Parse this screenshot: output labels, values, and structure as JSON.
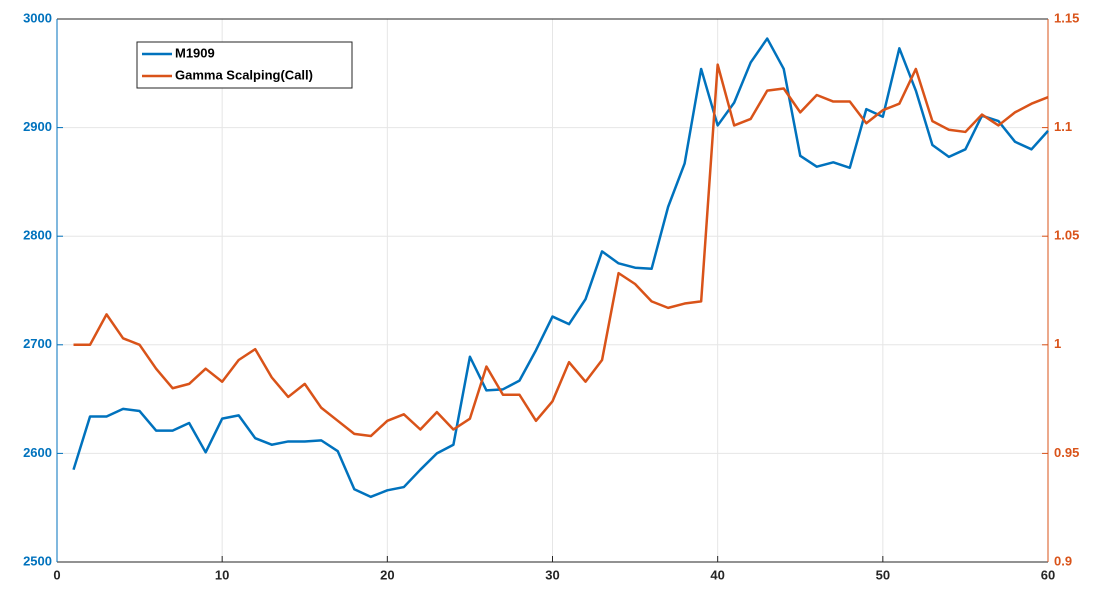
{
  "chart_data": {
    "type": "line",
    "x": [
      1,
      2,
      3,
      4,
      5,
      6,
      7,
      8,
      9,
      10,
      11,
      12,
      13,
      14,
      15,
      16,
      17,
      18,
      19,
      20,
      21,
      22,
      23,
      24,
      25,
      26,
      27,
      28,
      29,
      30,
      31,
      32,
      33,
      34,
      35,
      36,
      37,
      38,
      39,
      40,
      41,
      42,
      43,
      44,
      45,
      46,
      47,
      48,
      49,
      50,
      51,
      52,
      53,
      54,
      55,
      56,
      57,
      58,
      59,
      60
    ],
    "series": [
      {
        "name": "M1909",
        "color": "#0072bd",
        "values": [
          2585,
          2634,
          2634,
          2641,
          2639,
          2621,
          2621,
          2628,
          2601,
          2632,
          2635,
          2614,
          2608,
          2611,
          2611,
          2612,
          2602,
          2567,
          2560,
          2566,
          2569,
          2585,
          2600,
          2608,
          2689,
          2658,
          2659,
          2667,
          2695,
          2726,
          2719,
          2742,
          2786,
          2775,
          2771,
          2770,
          2827,
          2867,
          2954,
          2902,
          2923,
          2960,
          2982,
          2954,
          2874,
          2864,
          2868,
          2863,
          2917,
          2910,
          2973,
          2934,
          2884,
          2873,
          2880,
          2911,
          2906,
          2887,
          2880,
          2897
        ]
      },
      {
        "name": "Gamma Scalping(Call)",
        "color": "#d95319",
        "axis": "y2",
        "values": [
          1.0,
          1.0,
          1.014,
          1.003,
          1.0,
          0.989,
          0.98,
          0.982,
          0.989,
          0.983,
          0.993,
          0.998,
          0.985,
          0.976,
          0.982,
          0.971,
          0.965,
          0.959,
          0.958,
          0.965,
          0.968,
          0.961,
          0.969,
          0.961,
          0.966,
          0.99,
          0.977,
          0.977,
          0.965,
          0.974,
          0.992,
          0.983,
          0.993,
          1.033,
          1.028,
          1.02,
          1.017,
          1.019,
          1.02,
          1.129,
          1.101,
          1.104,
          1.117,
          1.118,
          1.107,
          1.115,
          1.112,
          1.112,
          1.102,
          1.108,
          1.111,
          1.127,
          1.103,
          1.099,
          1.098,
          1.106,
          1.101,
          1.107,
          1.111,
          1.114
        ]
      }
    ],
    "xlim": [
      0,
      60
    ],
    "xticks": [
      0,
      10,
      20,
      30,
      40,
      50,
      60
    ],
    "ylim": [
      2500,
      3000
    ],
    "yticks": [
      2500,
      2600,
      2700,
      2800,
      2900,
      3000
    ],
    "y2lim": [
      0.9,
      1.15
    ],
    "y2ticks": [
      0.9,
      0.95,
      1,
      1.05,
      1.1,
      1.15
    ],
    "grid": true,
    "legend": "top-left"
  }
}
